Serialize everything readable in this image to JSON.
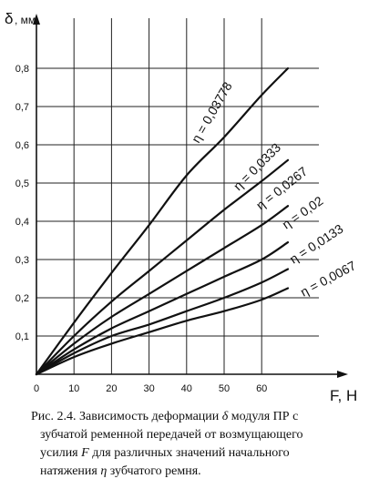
{
  "chart_data": {
    "type": "line",
    "xlabel": "F, H",
    "ylabel_symbol": "δ",
    "ylabel_unit": ", мм",
    "xlim": [
      0,
      70
    ],
    "ylim": [
      0,
      0.85
    ],
    "xticks": [
      "0",
      "10",
      "20",
      "30",
      "40",
      "50",
      "60"
    ],
    "yticks": [
      "0,1",
      "0,2",
      "0,3",
      "0,4",
      "0,5",
      "0,6",
      "0,7",
      "0,8"
    ],
    "grid": true,
    "series": [
      {
        "name": "η = 0,03778",
        "x": [
          0,
          10,
          20,
          30,
          40,
          50,
          60,
          67
        ],
        "y": [
          0,
          0.135,
          0.265,
          0.39,
          0.52,
          0.62,
          0.73,
          0.8
        ]
      },
      {
        "name": "η = 0,0333",
        "x": [
          0,
          10,
          20,
          30,
          40,
          50,
          60,
          67
        ],
        "y": [
          0,
          0.1,
          0.19,
          0.27,
          0.35,
          0.43,
          0.505,
          0.56
        ]
      },
      {
        "name": "η = 0,0267",
        "x": [
          0,
          10,
          20,
          30,
          40,
          50,
          60,
          67
        ],
        "y": [
          0,
          0.08,
          0.15,
          0.21,
          0.27,
          0.33,
          0.39,
          0.44
        ]
      },
      {
        "name": "η = 0,02",
        "x": [
          0,
          10,
          20,
          30,
          40,
          50,
          60,
          67
        ],
        "y": [
          0,
          0.065,
          0.12,
          0.165,
          0.21,
          0.255,
          0.3,
          0.345
        ]
      },
      {
        "name": "η = 0,0133",
        "x": [
          0,
          10,
          20,
          30,
          40,
          50,
          60,
          67
        ],
        "y": [
          0,
          0.055,
          0.1,
          0.13,
          0.165,
          0.2,
          0.24,
          0.275
        ]
      },
      {
        "name": "η = 0,0067",
        "x": [
          0,
          10,
          20,
          30,
          40,
          50,
          60,
          67
        ],
        "y": [
          0,
          0.045,
          0.08,
          0.11,
          0.14,
          0.165,
          0.195,
          0.225
        ]
      }
    ]
  },
  "caption": {
    "line1_a": "Рис. 2.4. Зависимость деформации ",
    "line1_sym": "δ",
    "line1_b": " модуля ПР с",
    "line2": "зубчатой ременной передачей от возмущающего",
    "line3_a": "усилия ",
    "line3_sym": "F",
    "line3_b": " для различных значений начального",
    "line4_a": "натяжения ",
    "line4_sym": "η",
    "line4_b": " зубчатого ремня."
  }
}
